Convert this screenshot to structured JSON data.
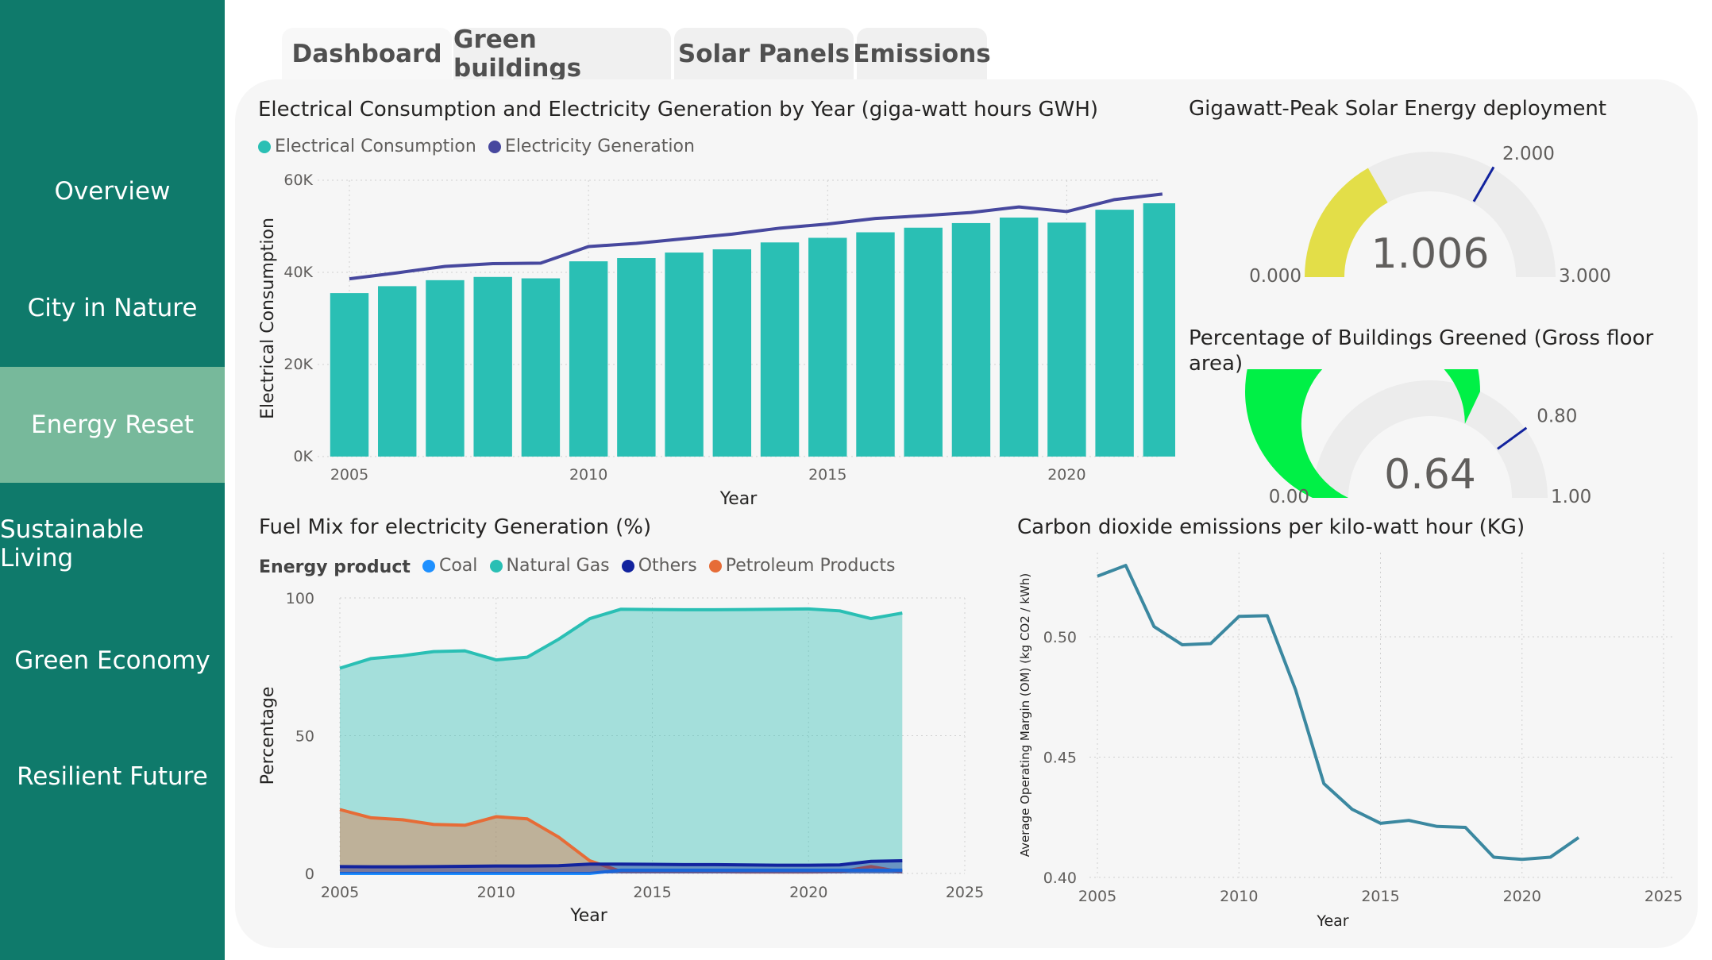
{
  "sidebar": {
    "items": [
      {
        "label": "Overview",
        "active": false
      },
      {
        "label": "City in Nature",
        "active": false
      },
      {
        "label": "Energy Reset",
        "active": true
      },
      {
        "label": "Sustainable Living",
        "active": false
      },
      {
        "label": "Green Economy",
        "active": false
      },
      {
        "label": "Resilient Future",
        "active": false
      }
    ]
  },
  "tabs": [
    {
      "label": "Dashboard",
      "active": true
    },
    {
      "label": "Green buildings",
      "active": false
    },
    {
      "label": "Solar Panels",
      "active": false
    },
    {
      "label": "Emissions",
      "active": false
    }
  ],
  "colors": {
    "sidebar_bg": "#0f7a6b",
    "sidebar_active": "#77b99b",
    "consumption": "#2abfb4",
    "generation": "#47489e",
    "coal": "#1e90ff",
    "natural_gas": "#2abfb4",
    "others": "#12239e",
    "petroleum": "#e66c37",
    "gauge_solar": "#e3de48",
    "gauge_green": "#00f046",
    "emissions_line": "#3b88a0"
  },
  "gauges": [
    {
      "title": "Gigawatt-Peak Solar Energy deployment",
      "value": 1.006,
      "value_label": "1.006",
      "min_label": "0.000",
      "max_label": "3.000",
      "target_label": "2.000",
      "min": 0,
      "max": 3,
      "target": 2
    },
    {
      "title": "Percentage of Buildings Greened (Gross floor area)",
      "value": 0.64,
      "value_label": "0.64",
      "min_label": "0.00",
      "max_label": "1.00",
      "target_label": "0.80",
      "min": 0,
      "max": 1,
      "target": 0.8
    }
  ],
  "chart_data": [
    {
      "type": "bar",
      "title": "Electrical Consumption and Electricity Generation by Year (giga-watt hours GWH)",
      "xlabel": "Year",
      "ylabel": "Electrical Consumption",
      "legend": [
        "Electrical Consumption",
        "Electricity Generation"
      ],
      "x": [
        2005,
        2006,
        2007,
        2008,
        2009,
        2010,
        2011,
        2012,
        2013,
        2014,
        2015,
        2016,
        2017,
        2018,
        2019,
        2020,
        2021,
        2022
      ],
      "x_ticks": [
        "2005",
        "2010",
        "2015",
        "2020"
      ],
      "y_ticks": [
        "0K",
        "20K",
        "40K",
        "60K"
      ],
      "ylim": [
        0,
        60000
      ],
      "series": [
        {
          "name": "Electrical Consumption",
          "type": "bar",
          "values": [
            35500,
            37000,
            38300,
            39000,
            38700,
            42400,
            43100,
            44300,
            45000,
            46500,
            47500,
            48700,
            49700,
            50700,
            51900,
            50800,
            53600,
            55000
          ]
        },
        {
          "name": "Electricity Generation",
          "type": "line",
          "values": [
            38600,
            39900,
            41300,
            41900,
            42000,
            45600,
            46300,
            47300,
            48300,
            49600,
            50500,
            51700,
            52300,
            53000,
            54200,
            53200,
            55800,
            57000
          ]
        }
      ],
      "grid": true,
      "legend_position": "top-left"
    },
    {
      "type": "area",
      "title": "Fuel Mix for electricity Generation (%)",
      "legend_title": "Energy product",
      "legend": [
        "Coal",
        "Natural Gas",
        "Others",
        "Petroleum Products"
      ],
      "xlabel": "Year",
      "ylabel": "Percentage",
      "x": [
        2005,
        2006,
        2007,
        2008,
        2009,
        2010,
        2011,
        2012,
        2013,
        2014,
        2015,
        2016,
        2017,
        2018,
        2019,
        2020,
        2021,
        2022,
        2023
      ],
      "x_ticks": [
        "2005",
        "2010",
        "2015",
        "2020",
        "2025"
      ],
      "y_ticks": [
        "0",
        "50",
        "100"
      ],
      "xlim": [
        2005,
        2025
      ],
      "ylim": [
        0,
        100
      ],
      "series": [
        {
          "name": "Coal",
          "values": [
            0,
            0,
            0,
            0,
            0,
            0,
            0,
            0,
            0,
            1.2,
            1.2,
            1.2,
            1.2,
            1.2,
            1.2,
            1.2,
            1.2,
            1.2,
            1.2
          ]
        },
        {
          "name": "Natural Gas",
          "values": [
            74.5,
            78.0,
            79.0,
            80.5,
            80.8,
            77.5,
            78.5,
            85.0,
            92.5,
            95.9,
            95.8,
            95.7,
            95.7,
            95.8,
            95.9,
            96.0,
            95.3,
            92.5,
            94.5
          ]
        },
        {
          "name": "Others",
          "values": [
            2.5,
            2.4,
            2.4,
            2.5,
            2.6,
            2.7,
            2.7,
            2.8,
            3.4,
            3.4,
            3.3,
            3.2,
            3.2,
            3.1,
            3.0,
            3.0,
            3.1,
            4.4,
            4.6
          ]
        },
        {
          "name": "Petroleum Products",
          "values": [
            23.2,
            20.2,
            19.5,
            17.8,
            17.5,
            20.6,
            19.8,
            13.2,
            4.6,
            0.7,
            0.6,
            0.6,
            0.6,
            0.5,
            0.5,
            0.5,
            0.6,
            2.5,
            0.5
          ]
        }
      ],
      "grid": true,
      "legend_position": "top-left"
    },
    {
      "type": "line",
      "title": "Carbon dioxide emissions per kilo-watt hour (KG)",
      "xlabel": "Year",
      "ylabel": "Average Operating Margin (OM) (kg CO2 / kWh)",
      "x": [
        2005,
        2006,
        2007,
        2008,
        2009,
        2010,
        2011,
        2012,
        2013,
        2014,
        2015,
        2016,
        2017,
        2018,
        2019,
        2020,
        2021,
        2022
      ],
      "x_ticks": [
        "2005",
        "2010",
        "2015",
        "2020",
        "2025"
      ],
      "y_ticks": [
        "0.40",
        "0.45",
        "0.50"
      ],
      "xlim": [
        2005,
        2025
      ],
      "ylim": [
        0.4,
        0.535
      ],
      "series": [
        {
          "name": "",
          "values": [
            0.5252,
            0.5297,
            0.5043,
            0.4967,
            0.4972,
            0.5085,
            0.5088,
            0.478,
            0.439,
            0.4283,
            0.4225,
            0.4237,
            0.4212,
            0.4208,
            0.4084,
            0.4075,
            0.4084,
            0.4166
          ]
        }
      ],
      "grid": true
    }
  ]
}
